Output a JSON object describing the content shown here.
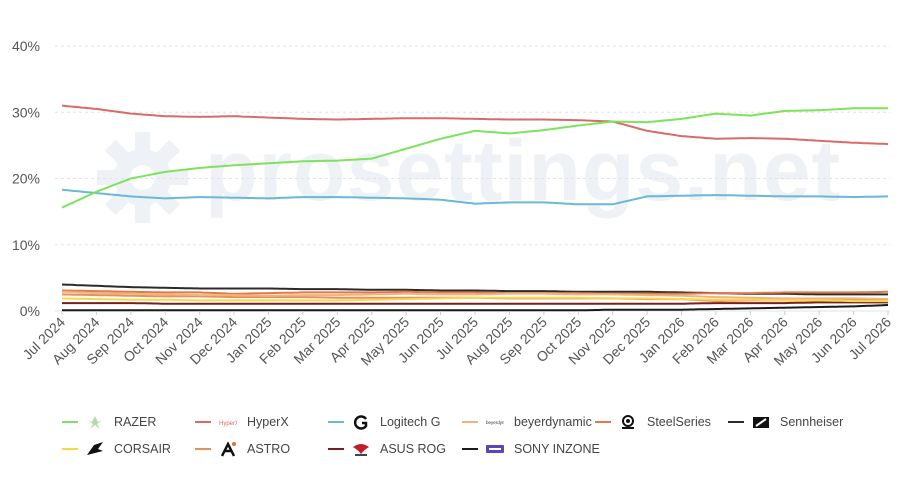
{
  "chart_data": {
    "type": "line",
    "yTicks": [
      "0%",
      "10%",
      "20%",
      "30%",
      "40%"
    ],
    "ylim": [
      0,
      40
    ],
    "xTicks": [
      "Jul 2024",
      "Aug 2024",
      "Sep 2024",
      "Oct 2024",
      "Nov 2024",
      "Dec 2024",
      "Jan 2025",
      "Feb 2025",
      "Mar 2025",
      "Apr 2025",
      "May 2025",
      "Jun 2025",
      "Jul 2025",
      "Aug 2025",
      "Sep 2025",
      "Oct 2025",
      "Nov 2025",
      "Dec 2025",
      "Jan 2026",
      "Feb 2026",
      "Mar 2026",
      "Apr 2026",
      "May 2026",
      "Jun 2026",
      "Jul 2026"
    ],
    "grid": true,
    "legend_position": "bottom",
    "series": [
      {
        "name": "RAZER",
        "color": "#7ce35c",
        "logo": "razer-icon",
        "values": [
          15.6,
          18.0,
          20.0,
          21.0,
          21.6,
          22.0,
          22.3,
          22.6,
          22.7,
          23.0,
          24.5,
          26.0,
          27.2,
          26.8,
          27.3,
          28.0,
          28.6,
          28.5,
          29.0,
          29.8,
          29.5,
          30.2,
          30.3,
          30.6,
          30.6
        ]
      },
      {
        "name": "HyperX",
        "color": "#d86a6a",
        "logo": "hyperx-icon",
        "values": [
          31.0,
          30.5,
          29.8,
          29.4,
          29.3,
          29.4,
          29.2,
          29.0,
          28.9,
          29.0,
          29.1,
          29.1,
          29.0,
          28.9,
          28.9,
          28.8,
          28.6,
          27.2,
          26.4,
          26.0,
          26.1,
          26.0,
          25.7,
          25.4,
          25.2
        ]
      },
      {
        "name": "Logitech G",
        "color": "#6ab8d4",
        "logo": "logitech-g-icon",
        "values": [
          18.3,
          17.8,
          17.3,
          17.0,
          17.2,
          17.1,
          17.0,
          17.2,
          17.2,
          17.1,
          17.0,
          16.8,
          16.2,
          16.4,
          16.4,
          16.1,
          16.1,
          17.3,
          17.4,
          17.5,
          17.4,
          17.3,
          17.3,
          17.2,
          17.3
        ]
      },
      {
        "name": "beyerdynamic",
        "color": "#f2b37a",
        "logo": "beyerdynamic-icon",
        "values": [
          2.9,
          2.7,
          2.6,
          2.5,
          2.4,
          2.4,
          2.3,
          2.4,
          2.4,
          2.5,
          2.6,
          2.5,
          2.5,
          2.6,
          2.6,
          2.5,
          2.5,
          2.4,
          2.3,
          2.1,
          2.0,
          1.9,
          1.9,
          1.9,
          1.8
        ]
      },
      {
        "name": "SteelSeries",
        "color": "#e27948",
        "logo": "steelseries-icon",
        "values": [
          3.1,
          3.0,
          2.9,
          2.8,
          2.8,
          2.6,
          2.7,
          2.8,
          2.8,
          2.8,
          2.9,
          2.8,
          2.8,
          2.7,
          2.7,
          2.7,
          2.6,
          2.6,
          2.6,
          2.7,
          2.7,
          2.8,
          2.8,
          2.8,
          2.9
        ]
      },
      {
        "name": "Sennheiser",
        "color": "#2b2b2b",
        "logo": "sennheiser-icon",
        "values": [
          4.0,
          3.8,
          3.6,
          3.5,
          3.4,
          3.4,
          3.4,
          3.3,
          3.3,
          3.2,
          3.2,
          3.1,
          3.1,
          3.0,
          3.0,
          2.9,
          2.9,
          2.9,
          2.8,
          2.7,
          2.6,
          2.6,
          2.5,
          2.5,
          2.5
        ]
      },
      {
        "name": "CORSAIR",
        "color": "#f5d94a",
        "logo": "corsair-icon",
        "values": [
          1.9,
          1.8,
          1.7,
          1.7,
          1.6,
          1.6,
          1.6,
          1.6,
          1.6,
          1.7,
          1.8,
          1.9,
          2.0,
          2.0,
          2.0,
          2.0,
          1.9,
          1.9,
          1.8,
          1.7,
          1.7,
          1.6,
          1.6,
          1.5,
          1.5
        ]
      },
      {
        "name": "ASTRO",
        "color": "#e6905e",
        "logo": "astro-icon",
        "values": [
          2.5,
          2.4,
          2.3,
          2.2,
          2.2,
          2.1,
          2.1,
          2.1,
          2.0,
          2.0,
          2.0,
          2.0,
          2.0,
          1.9,
          1.9,
          1.9,
          1.9,
          1.8,
          1.8,
          1.5,
          1.6,
          1.6,
          1.6,
          1.7,
          1.7
        ]
      },
      {
        "name": "ASUS ROG",
        "color": "#7a1f1f",
        "logo": "asus-rog-icon",
        "values": [
          1.2,
          1.2,
          1.2,
          1.1,
          1.1,
          1.1,
          1.1,
          1.1,
          1.1,
          1.1,
          1.1,
          1.1,
          1.1,
          1.1,
          1.1,
          1.1,
          1.1,
          1.1,
          1.1,
          1.2,
          1.2,
          1.2,
          1.3,
          1.3,
          1.3
        ]
      },
      {
        "name": "SONY INZONE",
        "color": "#1a1a1a",
        "logo": "sony-inzone-icon",
        "values": [
          0.1,
          0.1,
          0.1,
          0.1,
          0.1,
          0.1,
          0.1,
          0.1,
          0.1,
          0.1,
          0.1,
          0.1,
          0.1,
          0.1,
          0.1,
          0.1,
          0.2,
          0.2,
          0.2,
          0.3,
          0.4,
          0.5,
          0.6,
          0.7,
          0.9
        ]
      }
    ]
  },
  "watermark": {
    "text": "prosettings.net",
    "icon": "gear-icon"
  }
}
